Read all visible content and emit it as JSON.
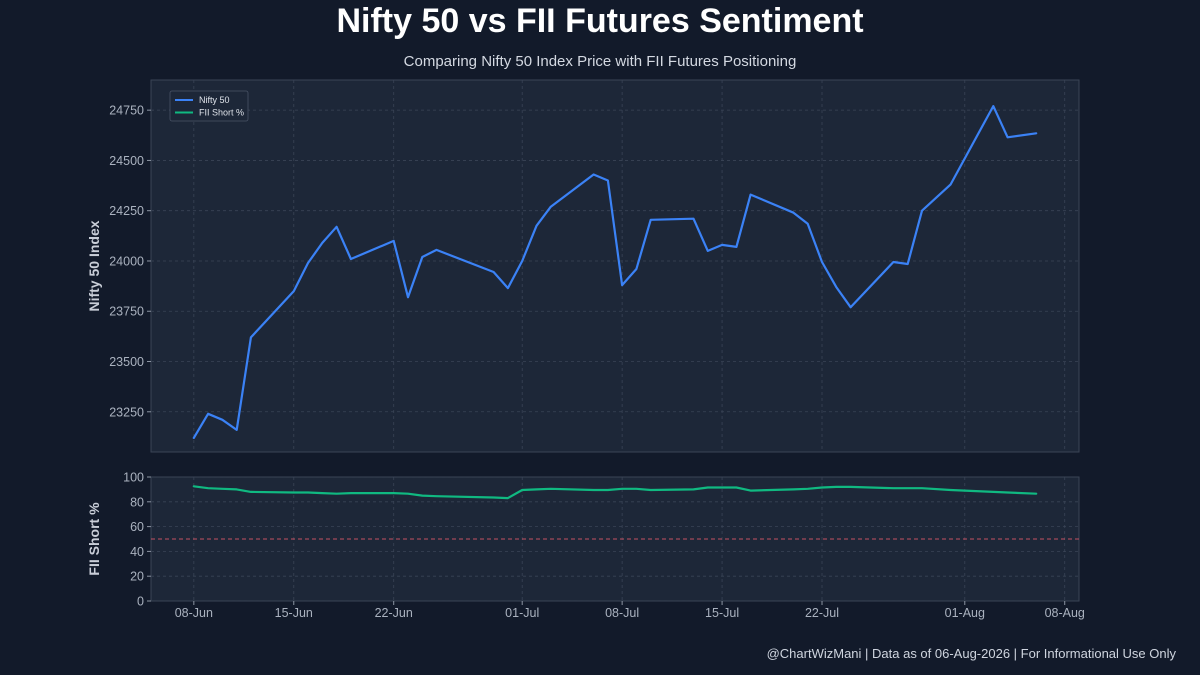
{
  "chart_data": {
    "type": "line",
    "title": "Nifty 50 vs FII Futures Sentiment",
    "subtitle": "Comparing Nifty 50 Index Price with FII Futures Positioning",
    "footer": "@ChartWizMani | Data as of 06-Aug-2026 | For Informational Use Only",
    "x_tick_labels": [
      "08-Jun",
      "15-Jun",
      "22-Jun",
      "01-Jul",
      "08-Jul",
      "15-Jul",
      "22-Jul",
      "01-Aug",
      "08-Aug"
    ],
    "x_tick_dates": [
      "2026-06-08",
      "2026-06-15",
      "2026-06-22",
      "2026-07-01",
      "2026-07-08",
      "2026-07-15",
      "2026-07-22",
      "2026-08-01",
      "2026-08-08"
    ],
    "xlim": [
      "2026-06-05",
      "2026-08-09"
    ],
    "panels": [
      {
        "ylabel": "Nifty 50 Index",
        "ylim": [
          23050,
          24900
        ],
        "y_ticks": [
          23250,
          23500,
          23750,
          24000,
          24250,
          24500,
          24750
        ],
        "grid": true,
        "legend_position": "top-left",
        "series": [
          {
            "name": "Nifty 50",
            "color": "#3b82f6",
            "x": [
              "2026-06-08",
              "2026-06-09",
              "2026-06-10",
              "2026-06-11",
              "2026-06-12",
              "2026-06-15",
              "2026-06-16",
              "2026-06-17",
              "2026-06-18",
              "2026-06-19",
              "2026-06-22",
              "2026-06-23",
              "2026-06-24",
              "2026-06-25",
              "2026-06-29",
              "2026-06-30",
              "2026-07-01",
              "2026-07-02",
              "2026-07-03",
              "2026-07-06",
              "2026-07-07",
              "2026-07-08",
              "2026-07-09",
              "2026-07-10",
              "2026-07-13",
              "2026-07-14",
              "2026-07-15",
              "2026-07-16",
              "2026-07-17",
              "2026-07-20",
              "2026-07-21",
              "2026-07-22",
              "2026-07-23",
              "2026-07-24",
              "2026-07-27",
              "2026-07-28",
              "2026-07-29",
              "2026-07-31",
              "2026-08-03",
              "2026-08-04",
              "2026-08-06"
            ],
            "values": [
              23120,
              23240,
              23210,
              23160,
              23620,
              23850,
              23990,
              24090,
              24170,
              24010,
              24100,
              23820,
              24020,
              24055,
              23945,
              23865,
              24000,
              24175,
              24270,
              24430,
              24400,
              23880,
              23960,
              24205,
              24210,
              24050,
              24080,
              24070,
              24330,
              24240,
              24185,
              23995,
              23870,
              23770,
              23995,
              23985,
              24250,
              24380,
              24770,
              24615,
              24635
            ]
          }
        ]
      },
      {
        "ylabel": "FII Short %",
        "ylim": [
          0,
          100
        ],
        "y_ticks": [
          0,
          20,
          40,
          60,
          80,
          100
        ],
        "grid": true,
        "reference_line": {
          "value": 50,
          "color": "#e05a6a",
          "style": "dashed"
        },
        "series": [
          {
            "name": "FII Short %",
            "color": "#10b981",
            "x": [
              "2026-06-08",
              "2026-06-09",
              "2026-06-10",
              "2026-06-11",
              "2026-06-12",
              "2026-06-15",
              "2026-06-16",
              "2026-06-17",
              "2026-06-18",
              "2026-06-19",
              "2026-06-22",
              "2026-06-23",
              "2026-06-24",
              "2026-06-25",
              "2026-06-29",
              "2026-06-30",
              "2026-07-01",
              "2026-07-02",
              "2026-07-03",
              "2026-07-06",
              "2026-07-07",
              "2026-07-08",
              "2026-07-09",
              "2026-07-10",
              "2026-07-13",
              "2026-07-14",
              "2026-07-15",
              "2026-07-16",
              "2026-07-17",
              "2026-07-20",
              "2026-07-21",
              "2026-07-22",
              "2026-07-23",
              "2026-07-24",
              "2026-07-27",
              "2026-07-28",
              "2026-07-29",
              "2026-07-31",
              "2026-08-03",
              "2026-08-04",
              "2026-08-06"
            ],
            "values": [
              92.5,
              91,
              90.5,
              90,
              88,
              87.5,
              87.5,
              87,
              86.5,
              87,
              87,
              86.5,
              85,
              84.5,
              83.5,
              83,
              89.5,
              90,
              90.5,
              89.5,
              89.5,
              90.5,
              90.5,
              89.5,
              90,
              91.5,
              91.5,
              91.5,
              89,
              90,
              90.5,
              91.5,
              92,
              92,
              91,
              91,
              91,
              89.5,
              88,
              87.5,
              86.5
            ]
          }
        ]
      }
    ]
  }
}
